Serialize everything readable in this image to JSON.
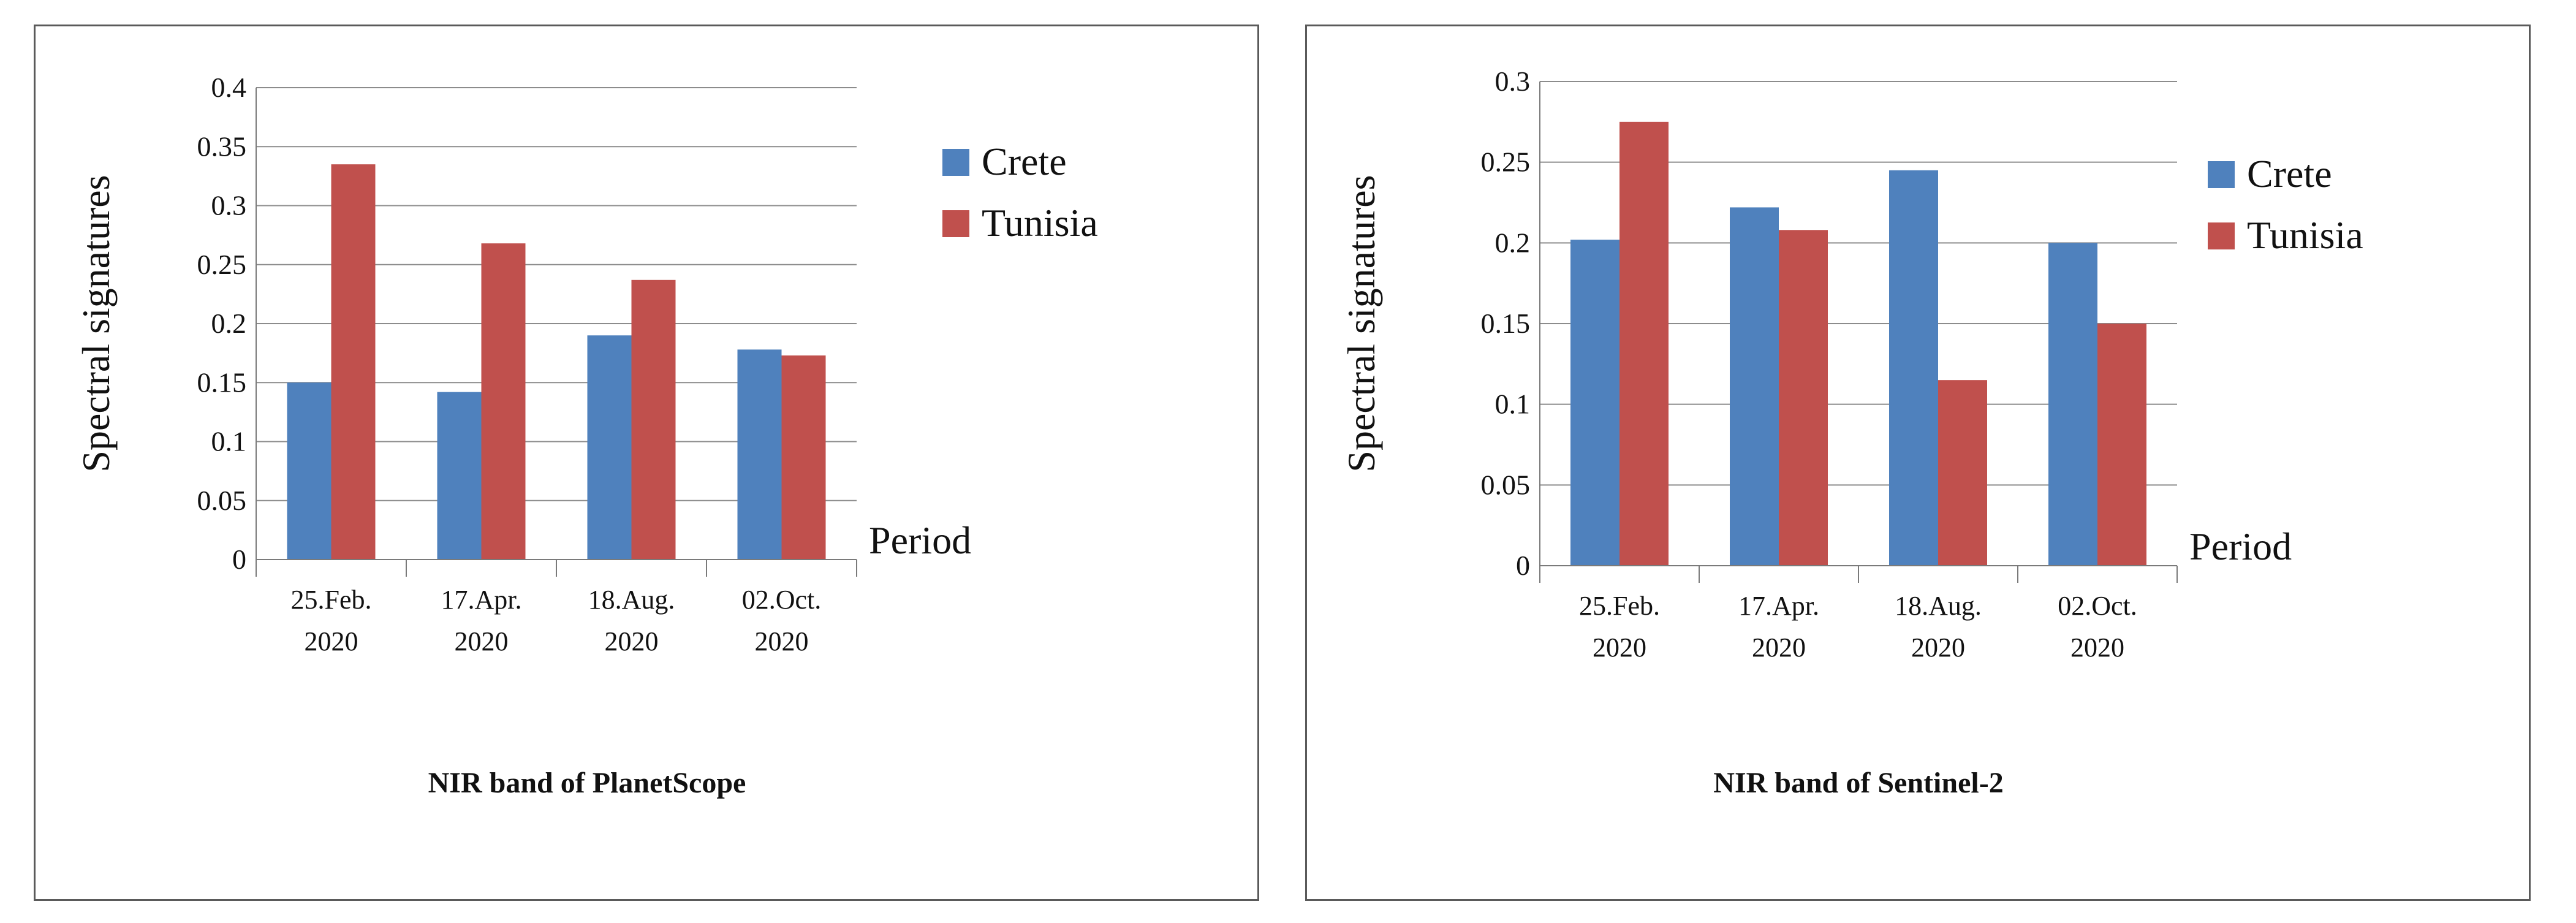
{
  "chart_data": [
    {
      "type": "bar",
      "title": "NIR band of PlanetScope",
      "xlabel": "Period",
      "ylabel": "Spectral signatures",
      "ylim": [
        0,
        0.4
      ],
      "yticks": [
        "0",
        "0.05",
        "0.1",
        "0.15",
        "0.2",
        "0.25",
        "0.3",
        "0.35",
        "0.4"
      ],
      "categories": [
        [
          "25.Feb.",
          "2020"
        ],
        [
          "17.Apr.",
          "2020"
        ],
        [
          "18.Aug.",
          "2020"
        ],
        [
          "02.Oct.",
          "2020"
        ]
      ],
      "series": [
        {
          "name": "Crete",
          "color": "#4f81bd",
          "values": [
            0.15,
            0.142,
            0.19,
            0.178
          ]
        },
        {
          "name": "Tunisia",
          "color": "#c0504d",
          "values": [
            0.335,
            0.268,
            0.237,
            0.173
          ]
        }
      ],
      "grid": true,
      "legend": "right"
    },
    {
      "type": "bar",
      "title": "NIR band of Sentinel-2",
      "xlabel": "Period",
      "ylabel": "Spectral signatures",
      "ylim": [
        0,
        0.3
      ],
      "yticks": [
        "0",
        "0.05",
        "0.1",
        "0.15",
        "0.2",
        "0.25",
        "0.3"
      ],
      "categories": [
        [
          "25.Feb.",
          "2020"
        ],
        [
          "17.Apr.",
          "2020"
        ],
        [
          "18.Aug.",
          "2020"
        ],
        [
          "02.Oct.",
          "2020"
        ]
      ],
      "series": [
        {
          "name": "Crete",
          "color": "#4f81bd",
          "values": [
            0.202,
            0.222,
            0.245,
            0.2
          ]
        },
        {
          "name": "Tunisia",
          "color": "#c0504d",
          "values": [
            0.275,
            0.208,
            0.115,
            0.15
          ]
        }
      ],
      "grid": true,
      "legend": "right"
    }
  ]
}
